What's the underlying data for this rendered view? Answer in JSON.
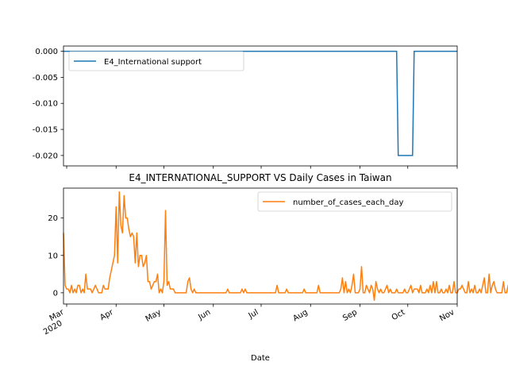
{
  "chart_data": [
    {
      "type": "line",
      "title": "",
      "xlabel": "",
      "ylabel": "",
      "ylim": [
        -0.022,
        0.001
      ],
      "yticks": [
        "0.000",
        "-0.005",
        "-0.010",
        "-0.015",
        "-0.020"
      ],
      "legend": "top-left",
      "grid": false,
      "series": [
        {
          "name": "E4_International support",
          "color": "#1f77b4",
          "x": [
            "2020-02-28",
            "2020-09-24",
            "2020-09-25",
            "2020-10-04",
            "2020-10-05",
            "2020-11-01"
          ],
          "values": [
            0,
            0,
            -0.02,
            -0.02,
            0,
            0
          ]
        }
      ]
    },
    {
      "type": "line",
      "title": "E4_INTERNATIONAL_SUPPORT VS Daily Cases in Taiwan",
      "xlabel": "Date",
      "ylabel": "",
      "ylim": [
        -3,
        28
      ],
      "yticks": [
        "0",
        "10",
        "20"
      ],
      "legend": "top-right",
      "grid": false,
      "xticks": [
        {
          "label": "Mar",
          "sub": "2020",
          "date": "2020-03-01"
        },
        {
          "label": "Apr",
          "sub": "",
          "date": "2020-04-01"
        },
        {
          "label": "May",
          "sub": "",
          "date": "2020-05-01"
        },
        {
          "label": "Jun",
          "sub": "",
          "date": "2020-06-01"
        },
        {
          "label": "Jul",
          "sub": "",
          "date": "2020-07-01"
        },
        {
          "label": "Aug",
          "sub": "",
          "date": "2020-08-01"
        },
        {
          "label": "Sep",
          "sub": "",
          "date": "2020-09-01"
        },
        {
          "label": "Oct",
          "sub": "",
          "date": "2020-10-01"
        },
        {
          "label": "Nov",
          "sub": "",
          "date": "2020-11-01"
        }
      ],
      "series": [
        {
          "name": "number_of_cases_each_day",
          "color": "#ff7f0e",
          "start_date": "2020-02-28",
          "values": [
            16,
            2,
            1,
            1,
            0,
            2,
            0,
            1,
            0,
            2,
            2,
            0,
            1,
            0,
            5,
            1,
            1,
            1,
            0,
            1,
            2,
            1,
            0,
            0,
            0,
            2,
            1,
            1,
            1,
            4,
            6,
            8,
            10,
            23,
            8,
            27,
            18,
            16,
            26,
            20,
            20,
            17,
            15,
            16,
            15,
            8,
            16,
            7,
            10,
            10,
            7,
            8,
            10,
            3,
            3,
            1,
            2,
            3,
            3,
            5,
            0,
            1,
            0,
            3,
            22,
            2,
            3,
            1,
            1,
            1,
            0,
            0,
            0,
            0,
            0,
            0,
            0,
            0,
            3,
            4,
            1,
            0,
            1,
            0,
            0,
            0,
            0,
            0,
            0,
            0,
            0,
            0,
            0,
            0,
            0,
            0,
            0,
            0,
            0,
            0,
            0,
            0,
            0,
            1,
            0,
            0,
            0,
            0,
            0,
            0,
            0,
            0,
            1,
            0,
            1,
            0,
            0,
            0,
            0,
            0,
            0,
            0,
            0,
            0,
            0,
            0,
            0,
            0,
            0,
            0,
            0,
            0,
            0,
            0,
            2,
            0,
            0,
            0,
            0,
            0,
            1,
            0,
            0,
            0,
            0,
            0,
            0,
            0,
            0,
            0,
            0,
            1,
            0,
            0,
            0,
            0,
            0,
            0,
            0,
            0,
            2,
            0,
            0,
            0,
            0,
            0,
            0,
            0,
            0,
            0,
            0,
            0,
            0,
            0,
            1,
            4,
            0,
            3,
            0,
            1,
            0,
            2,
            5,
            0,
            0,
            0,
            1,
            7,
            0,
            0,
            2,
            1,
            0,
            2,
            1,
            -2,
            3,
            1,
            0,
            1,
            0,
            0,
            1,
            2,
            0,
            1,
            0,
            0,
            0,
            1,
            0,
            0,
            0,
            0,
            1,
            0,
            0,
            1,
            2,
            0,
            1,
            1,
            1,
            0,
            2,
            0,
            0,
            0,
            1,
            0,
            2,
            0,
            3,
            0,
            3,
            0,
            0,
            1,
            0,
            0,
            1,
            0,
            2,
            0,
            0,
            3,
            0,
            0,
            1,
            1,
            2,
            1,
            0,
            0,
            3,
            0,
            1,
            0,
            2,
            0,
            0,
            1,
            0,
            2,
            4,
            0,
            0,
            5,
            0,
            2,
            3,
            1,
            0,
            0,
            0,
            0,
            3,
            0,
            0,
            2,
            3
          ]
        }
      ]
    }
  ]
}
